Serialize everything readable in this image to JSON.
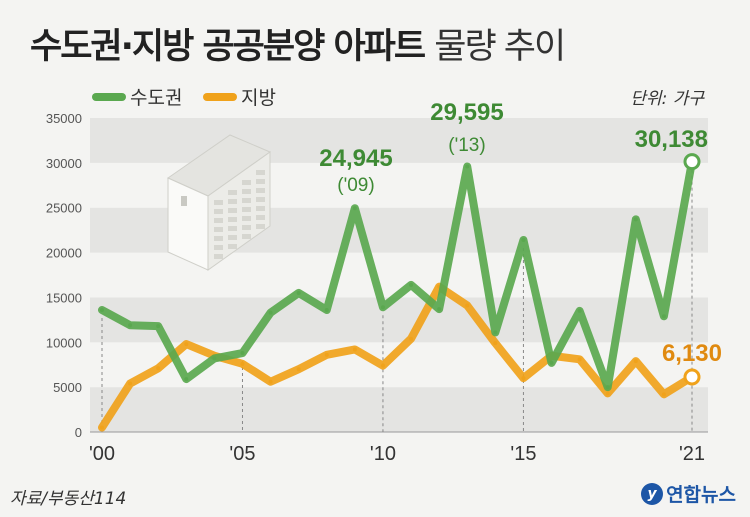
{
  "title": {
    "main": "수도권·지방 공공분양 아파트",
    "sub": "물량 추이"
  },
  "unit_label": "단위: 가구",
  "source": "자료/부동산114",
  "credit": {
    "mark": "y",
    "text": "연합뉴스"
  },
  "colors": {
    "capital": "#5aa84f",
    "regional": "#f0a21b",
    "capital_label": "#3e8a34",
    "regional_label": "#e08a10"
  },
  "callouts": {
    "c2009_value": "24,945",
    "c2009_year": "('09)",
    "c2013_value": "29,595",
    "c2013_year": "('13)",
    "c2021_capital": "30,138",
    "c2021_regional": "6,130"
  },
  "chart_data": {
    "type": "line",
    "x": [
      2000,
      2001,
      2002,
      2003,
      2004,
      2005,
      2006,
      2007,
      2008,
      2009,
      2010,
      2011,
      2012,
      2013,
      2014,
      2015,
      2016,
      2017,
      2018,
      2019,
      2020,
      2021
    ],
    "x_tick_labels": [
      "'00",
      "'05",
      "'10",
      "'15",
      "'21"
    ],
    "x_tick_values": [
      2000,
      2005,
      2010,
      2015,
      2021
    ],
    "y_ticks": [
      0,
      5000,
      10000,
      15000,
      20000,
      25000,
      30000,
      35000
    ],
    "ylim": [
      0,
      35000
    ],
    "legend_position": "top-left",
    "series": [
      {
        "name": "수도권",
        "values": [
          13600,
          11900,
          11800,
          5900,
          8200,
          8800,
          13300,
          15500,
          13600,
          24945,
          13900,
          16400,
          13700,
          29595,
          11100,
          21400,
          7700,
          13500,
          5000,
          23700,
          12900,
          30138
        ]
      },
      {
        "name": "지방",
        "values": [
          500,
          5400,
          7100,
          9800,
          8500,
          7600,
          5600,
          7000,
          8600,
          9200,
          7400,
          10400,
          16200,
          14100,
          9900,
          6000,
          8500,
          8100,
          4300,
          7900,
          4200,
          6130
        ]
      }
    ]
  }
}
